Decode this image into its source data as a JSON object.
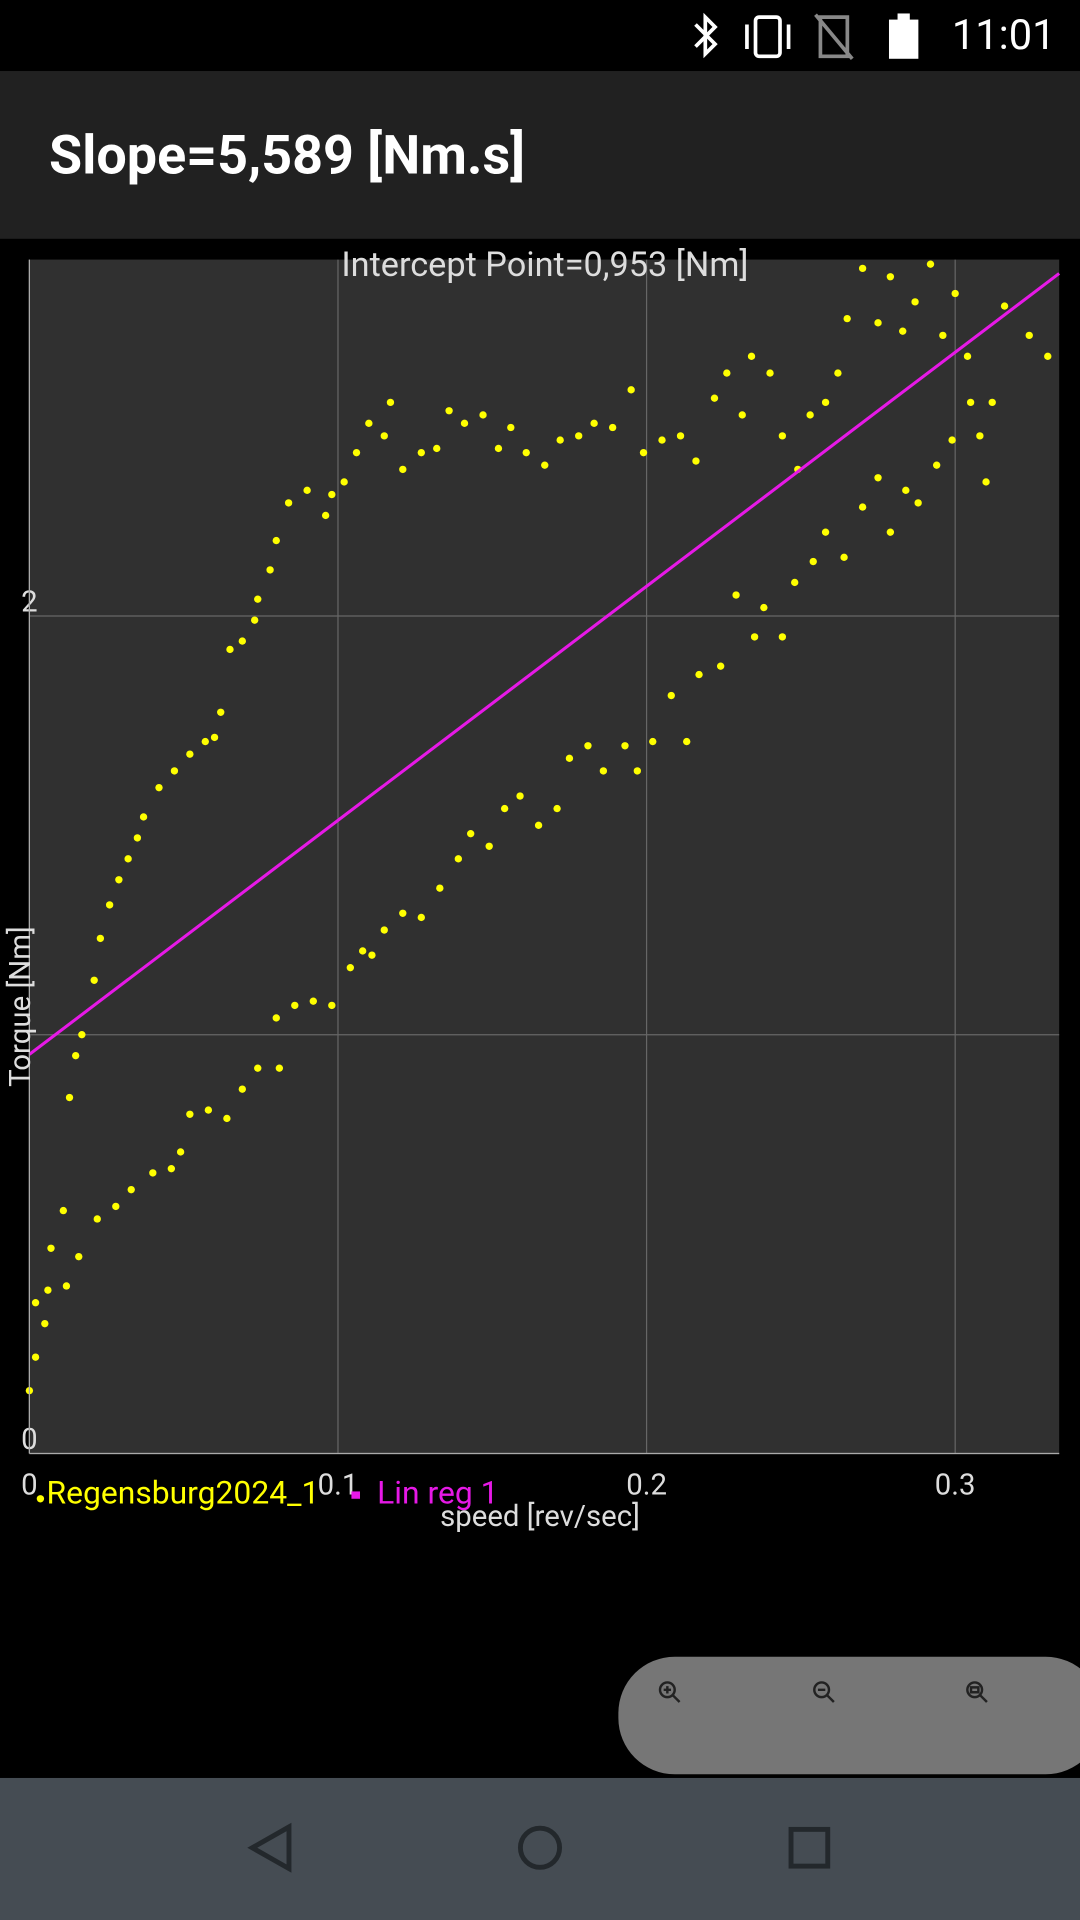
{
  "status_bar": {
    "time": "11:01"
  },
  "header": {
    "title": "Slope=5,589 [Nm.s]"
  },
  "chart_data": {
    "type": "scatter",
    "annotation": "Intercept Point=0,953 [Nm]",
    "x_label": "speed [rev/sec]",
    "y_label": "Torque [Nm]",
    "xlim": [
      0,
      0.3337
    ],
    "ylim": [
      0,
      2.851
    ],
    "xticks": [
      0,
      0.1,
      0.2,
      0.3
    ],
    "yticks": [
      0,
      {
        "value": 1,
        "label": null
      },
      2
    ],
    "grid": true,
    "series": [
      {
        "name": "Regensburg2024_1",
        "type": "scatter",
        "color": "#ffff00",
        "x": [
          0,
          0.002,
          0.005,
          0.007,
          0.011,
          0.013,
          0.015,
          0.017,
          0.021,
          0.023,
          0.026,
          0.029,
          0.032,
          0.035,
          0.037,
          0.042,
          0.047,
          0.052,
          0.057,
          0.06,
          0.062,
          0.065,
          0.069,
          0.073,
          0.074,
          0.078,
          0.08,
          0.084,
          0.09,
          0.096,
          0.098,
          0.102,
          0.106,
          0.11,
          0.115,
          0.117,
          0.121,
          0.127,
          0.132,
          0.136,
          0.141,
          0.147,
          0.152,
          0.156,
          0.161,
          0.167,
          0.172,
          0.178,
          0.183,
          0.189,
          0.195,
          0.199,
          0.205,
          0.211,
          0.216,
          0.222,
          0.226,
          0.231,
          0.234,
          0.24,
          0.244,
          0.249,
          0.253,
          0.258,
          0.262,
          0.265,
          0.27,
          0.275,
          0.279,
          0.283,
          0.287,
          0.292,
          0.296,
          0.3,
          0.304,
          0.31,
          0.316,
          0.324,
          0.33,
          0.002,
          0.006,
          0.012,
          0.016,
          0.022,
          0.028,
          0.033,
          0.04,
          0.046,
          0.049,
          0.052,
          0.058,
          0.064,
          0.069,
          0.074,
          0.081,
          0.08,
          0.086,
          0.092,
          0.098,
          0.104,
          0.108,
          0.111,
          0.115,
          0.121,
          0.127,
          0.133,
          0.139,
          0.143,
          0.149,
          0.154,
          0.159,
          0.165,
          0.171,
          0.175,
          0.181,
          0.186,
          0.193,
          0.197,
          0.202,
          0.208,
          0.213,
          0.217,
          0.224,
          0.229,
          0.235,
          0.238,
          0.244,
          0.248,
          0.254,
          0.258,
          0.264,
          0.27,
          0.275,
          0.279,
          0.284,
          0.288,
          0.294,
          0.299,
          0.305,
          0.308,
          0.312
        ],
        "values": [
          0.15,
          0.23,
          0.31,
          0.49,
          0.58,
          0.85,
          0.95,
          1.0,
          1.13,
          1.23,
          1.31,
          1.37,
          1.42,
          1.47,
          1.52,
          1.59,
          1.63,
          1.67,
          1.7,
          1.71,
          1.77,
          1.92,
          1.94,
          1.99,
          2.04,
          2.11,
          2.18,
          2.27,
          2.3,
          2.24,
          2.29,
          2.32,
          2.39,
          2.46,
          2.43,
          2.51,
          2.35,
          2.39,
          2.4,
          2.49,
          2.46,
          2.48,
          2.4,
          2.45,
          2.39,
          2.36,
          2.42,
          2.43,
          2.46,
          2.45,
          2.54,
          2.39,
          2.42,
          2.43,
          2.37,
          2.52,
          2.58,
          2.48,
          2.62,
          2.58,
          2.43,
          2.35,
          2.48,
          2.51,
          2.58,
          2.71,
          2.83,
          2.7,
          2.81,
          2.68,
          2.75,
          2.84,
          2.67,
          2.77,
          2.62,
          2.32,
          2.74,
          2.67,
          2.62,
          0.36,
          0.39,
          0.4,
          0.47,
          0.56,
          0.59,
          0.63,
          0.67,
          0.68,
          0.72,
          0.81,
          0.82,
          0.8,
          0.87,
          0.92,
          0.92,
          1.04,
          1.07,
          1.08,
          1.07,
          1.16,
          1.2,
          1.19,
          1.25,
          1.29,
          1.28,
          1.35,
          1.42,
          1.48,
          1.45,
          1.54,
          1.57,
          1.5,
          1.54,
          1.66,
          1.69,
          1.63,
          1.69,
          1.63,
          1.7,
          1.81,
          1.7,
          1.86,
          1.88,
          2.05,
          1.95,
          2.02,
          1.95,
          2.08,
          2.13,
          2.2,
          2.14,
          2.26,
          2.33,
          2.2,
          2.3,
          2.27,
          2.36,
          2.42,
          2.51,
          2.43,
          2.51
        ]
      },
      {
        "name": "Lin reg 1",
        "type": "line",
        "color": "#e619e6",
        "x": [
          0,
          0.3337
        ],
        "values": [
          0.953,
          2.818
        ]
      }
    ]
  }
}
